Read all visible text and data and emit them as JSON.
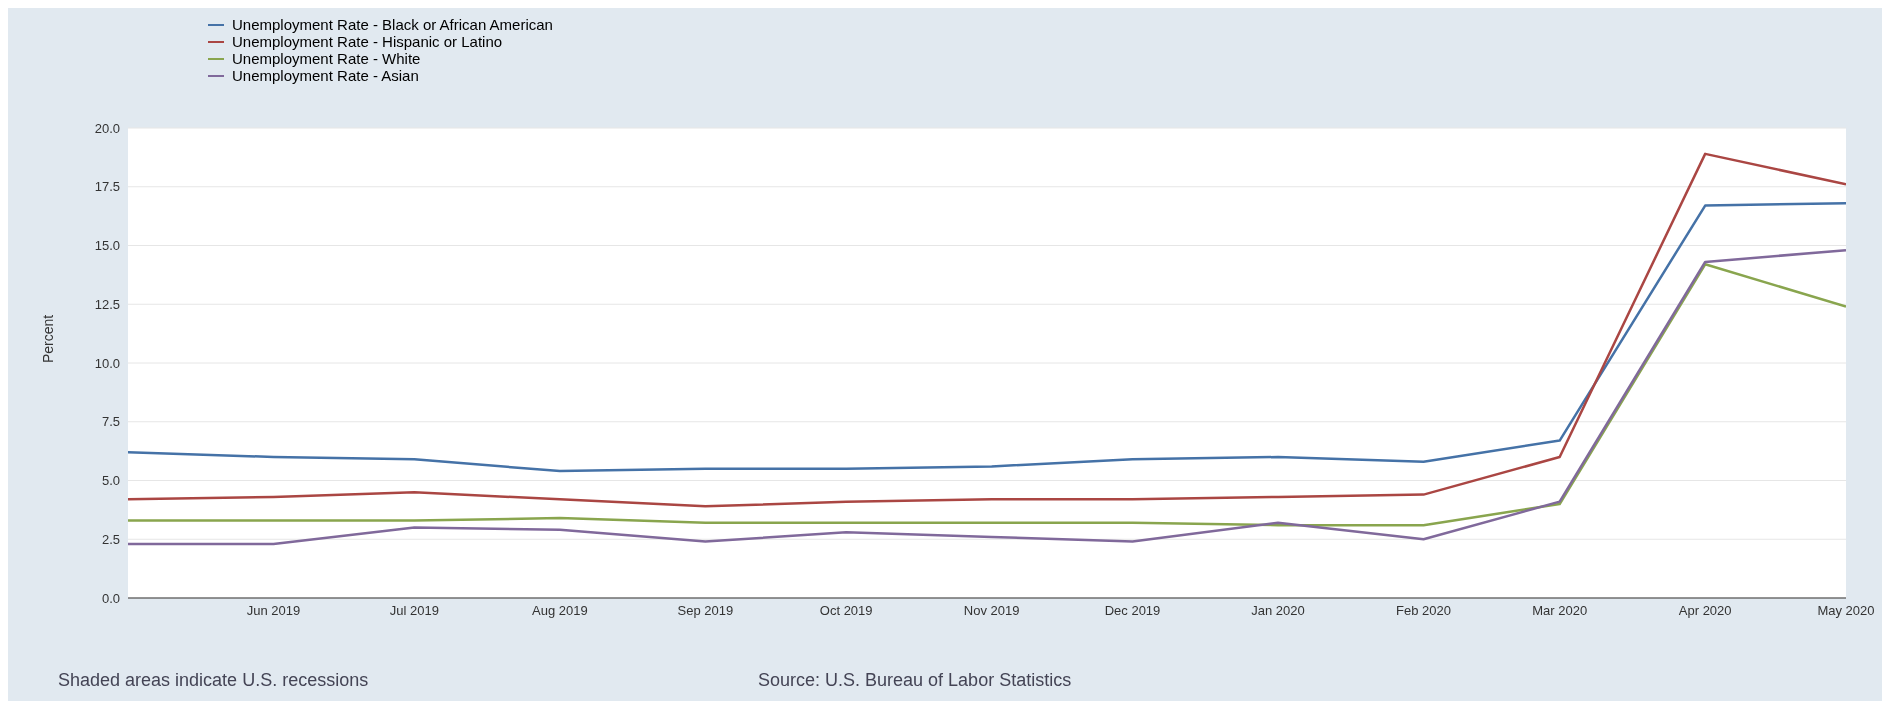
{
  "chart_data": {
    "type": "line",
    "ylabel": "Percent",
    "x": [
      "2019-05",
      "2019-06",
      "2019-07",
      "2019-08",
      "2019-09",
      "2019-10",
      "2019-11",
      "2019-12",
      "2020-01",
      "2020-02",
      "2020-03",
      "2020-04",
      "2020-05"
    ],
    "series": [
      {
        "name": "Unemployment Rate - Black or African American",
        "color": "#4572a7",
        "values": [
          6.2,
          6.0,
          5.9,
          5.4,
          5.5,
          5.5,
          5.6,
          5.9,
          6.0,
          5.8,
          6.7,
          16.7,
          16.8
        ]
      },
      {
        "name": "Unemployment Rate - Hispanic or Latino",
        "color": "#aa4643",
        "values": [
          4.2,
          4.3,
          4.5,
          4.2,
          3.9,
          4.1,
          4.2,
          4.2,
          4.3,
          4.4,
          6.0,
          18.9,
          17.6
        ]
      },
      {
        "name": "Unemployment Rate - White",
        "color": "#89a54e",
        "values": [
          3.3,
          3.3,
          3.3,
          3.4,
          3.2,
          3.2,
          3.2,
          3.2,
          3.1,
          3.1,
          4.0,
          14.2,
          12.4
        ]
      },
      {
        "name": "Unemployment Rate - Asian",
        "color": "#80699b",
        "values": [
          2.3,
          2.3,
          3.0,
          2.9,
          2.4,
          2.8,
          2.6,
          2.4,
          3.2,
          2.5,
          4.1,
          14.3,
          14.8
        ]
      }
    ],
    "xlim": [
      "2019-05",
      "2020-05"
    ],
    "xticks": [
      {
        "value": "2019-06",
        "label": "Jun 2019"
      },
      {
        "value": "2019-07",
        "label": "Jul 2019"
      },
      {
        "value": "2019-08",
        "label": "Aug 2019"
      },
      {
        "value": "2019-09",
        "label": "Sep 2019"
      },
      {
        "value": "2019-10",
        "label": "Oct 2019"
      },
      {
        "value": "2019-11",
        "label": "Nov 2019"
      },
      {
        "value": "2019-12",
        "label": "Dec 2019"
      },
      {
        "value": "2020-01",
        "label": "Jan 2020"
      },
      {
        "value": "2020-02",
        "label": "Feb 2020"
      },
      {
        "value": "2020-03",
        "label": "Mar 2020"
      },
      {
        "value": "2020-04",
        "label": "Apr 2020"
      },
      {
        "value": "2020-05",
        "label": "May 2020"
      }
    ],
    "ylim": [
      0,
      20
    ],
    "yticks": [
      {
        "value": 0,
        "label": "0.0"
      },
      {
        "value": 2.5,
        "label": "2.5"
      },
      {
        "value": 5,
        "label": "5.0"
      },
      {
        "value": 7.5,
        "label": "7.5"
      },
      {
        "value": 10,
        "label": "10.0"
      },
      {
        "value": 12.5,
        "label": "12.5"
      },
      {
        "value": 15,
        "label": "15.0"
      },
      {
        "value": 17.5,
        "label": "17.5"
      },
      {
        "value": 20,
        "label": "20.0"
      }
    ],
    "grid": "y",
    "legend": "top left",
    "marker": "none",
    "line_style": "solid",
    "annotations": [
      "Shaded areas indicate U.S. recessions",
      "Source: U.S. Bureau of Labor Statistics"
    ]
  }
}
